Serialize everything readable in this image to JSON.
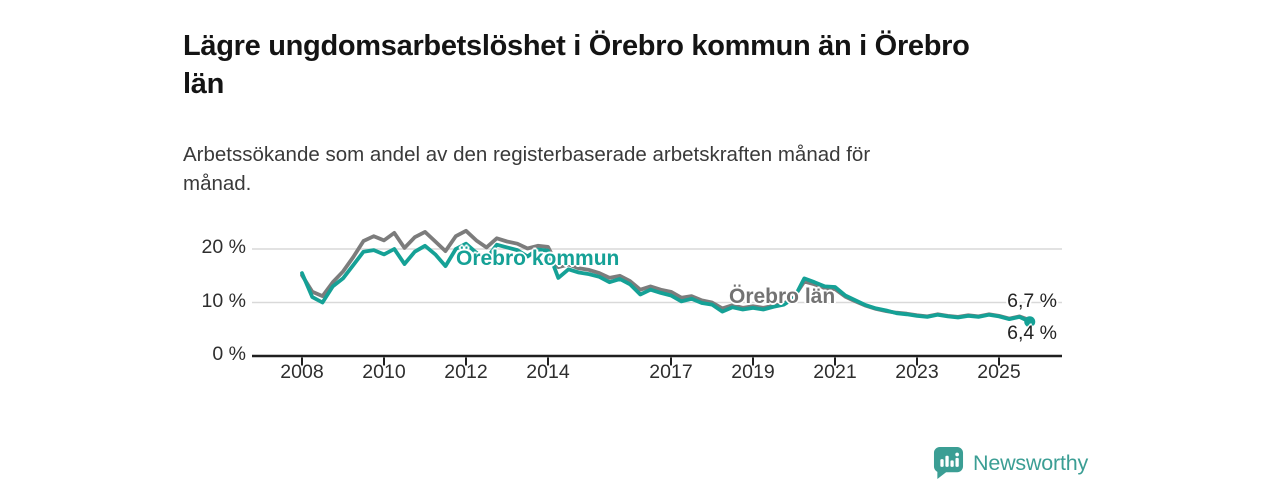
{
  "chart_data": {
    "type": "line",
    "title": "Lägre ungdomsarbetslöshet i Örebro kommun än i Örebro\nlän",
    "subtitle": "Arbetssökande som andel av den registerbaserade arbetskraften månad för\nmånad.",
    "unit": "%",
    "grid": "horizontal",
    "legend_position": "inline-annotations",
    "ylim": [
      0,
      25
    ],
    "y_ticks": [
      {
        "value": 0,
        "label": "0 %"
      },
      {
        "value": 10,
        "label": "10 %"
      },
      {
        "value": 20,
        "label": "20 %"
      }
    ],
    "x_tick_years": [
      2008,
      2010,
      2012,
      2014,
      2017,
      2019,
      2021,
      2023,
      2025
    ],
    "x_tick_labels": [
      "2008",
      "2010",
      "2012",
      "2014",
      "2017",
      "2019",
      "2021",
      "2023",
      "2025"
    ],
    "x_start": 2008,
    "x_step_years": 0.25,
    "series": [
      {
        "name": "Örebro län",
        "color": "#7c7c7c",
        "end_label": "6,7 %",
        "end_value": 6.7,
        "end_dot": false,
        "values": [
          15.1,
          12.0,
          11.2,
          13.8,
          15.8,
          18.5,
          21.5,
          22.4,
          21.6,
          23.0,
          20.2,
          22.2,
          23.2,
          21.4,
          19.6,
          22.4,
          23.4,
          21.6,
          20.3,
          22.0,
          21.4,
          21.0,
          20.1,
          20.6,
          20.4,
          16.6,
          17.1,
          16.4,
          16.1,
          15.5,
          14.6,
          15.0,
          14.0,
          12.4,
          13.0,
          12.4,
          12.0,
          10.9,
          11.2,
          10.4,
          10.0,
          8.9,
          9.5,
          9.0,
          9.3,
          9.0,
          9.4,
          9.8,
          11.0,
          13.9,
          13.4,
          12.7,
          12.5,
          11.1,
          10.2,
          9.4,
          8.8,
          8.4,
          8.1,
          7.9,
          7.6,
          7.4,
          7.8,
          7.5,
          7.3,
          7.6,
          7.4,
          7.8,
          7.5,
          7.0,
          7.4,
          6.7
        ]
      },
      {
        "name": "Örebro kommun",
        "color": "#15a196",
        "end_label": "6,4 %",
        "end_value": 6.4,
        "end_dot": true,
        "values": [
          15.5,
          11.0,
          10.0,
          13.0,
          14.5,
          17.0,
          19.5,
          19.8,
          19.0,
          20.0,
          17.2,
          19.5,
          20.6,
          19.0,
          16.8,
          20.0,
          21.0,
          19.3,
          18.2,
          20.8,
          20.3,
          19.8,
          18.6,
          19.9,
          19.7,
          14.6,
          16.2,
          15.6,
          15.3,
          14.8,
          13.8,
          14.4,
          13.4,
          11.5,
          12.4,
          11.8,
          11.3,
          10.2,
          10.7,
          9.9,
          9.6,
          8.3,
          9.1,
          8.7,
          9.0,
          8.7,
          9.2,
          9.6,
          10.8,
          14.5,
          13.8,
          13.0,
          12.9,
          11.3,
          10.4,
          9.5,
          8.9,
          8.5,
          8.0,
          7.8,
          7.5,
          7.3,
          7.7,
          7.4,
          7.2,
          7.5,
          7.3,
          7.7,
          7.4,
          6.9,
          7.3,
          6.4
        ]
      }
    ]
  },
  "colors": {
    "kommun_teal": "#15a196",
    "lan_gray": "#7c7c7c",
    "gridline": "#d9d9d9",
    "axis": "#1f1f1f",
    "title_text": "#141414",
    "body_text": "#3a3a3a",
    "brand_teal": "#3b9e94"
  },
  "branding": {
    "name": "Newsworthy",
    "icon": "newsworthy-pin-barchart-icon"
  }
}
